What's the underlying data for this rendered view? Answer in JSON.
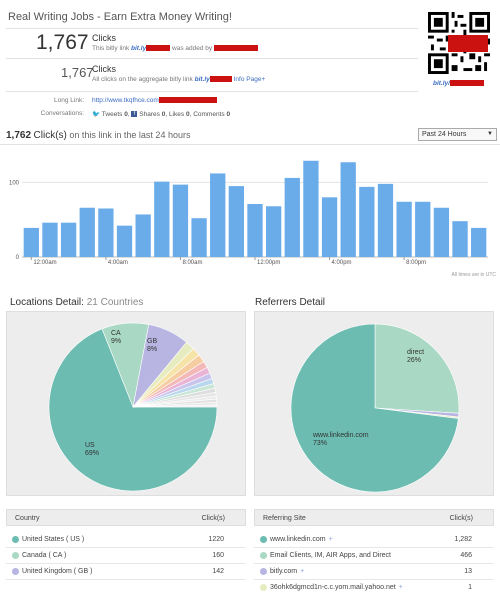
{
  "page": {
    "title": "Real Writing Jobs - Earn Extra Money Writing!"
  },
  "summary": {
    "clicks_count": "1,767",
    "clicks_label": "Clicks",
    "clicks_sub_prefix": "This bitly link",
    "bitly_word": "bit.ly",
    "clicks_sub_mid": "was added by",
    "agg_count": "1,767",
    "agg_label": "Clicks",
    "agg_sub_prefix": "All clicks on the aggregate bitly link",
    "agg_sub_suffix": "Info Page+",
    "long_link_label": "Long Link:",
    "long_link_value": "http://www.tkqfhce.com",
    "conversations_label": "Conversations:",
    "conv_tweets": "Tweets",
    "conv_tweets_n": "0",
    "conv_shares": "Shares",
    "conv_shares_n": "0",
    "conv_likes": "Likes",
    "conv_likes_n": "0",
    "conv_comments": "Comments",
    "conv_comments_n": "0",
    "qr_caption": "bit.ly/"
  },
  "clicks_chart": {
    "count": "1,762",
    "label": "Click(s)",
    "suffix": "on this link in the last 24 hours",
    "range_selected": "Past 24 Hours",
    "footnote": "All times are in UTC"
  },
  "locations": {
    "title": "Locations Detail:",
    "count_text": "21 Countries",
    "table_header_country": "Country",
    "table_header_clicks": "Click(s)",
    "rows": [
      {
        "name": "United States ( US )",
        "clicks": "1220",
        "color": "#6cbcb2"
      },
      {
        "name": "Canada ( CA )",
        "clicks": "160",
        "color": "#a9d9c5"
      },
      {
        "name": "United Kingdom ( GB )",
        "clicks": "142",
        "color": "#b8b5e2"
      }
    ],
    "pie_labels": [
      {
        "code": "US",
        "pct": "69%"
      },
      {
        "code": "CA",
        "pct": "9%"
      },
      {
        "code": "GB",
        "pct": "8%"
      }
    ]
  },
  "referrers": {
    "title": "Referrers Detail",
    "table_header_site": "Referring Site",
    "table_header_clicks": "Click(s)",
    "rows": [
      {
        "name": "www.linkedin.com",
        "clicks": "1,282",
        "color": "#6cbcb2"
      },
      {
        "name": "Email Clients, IM, AIR Apps, and Direct",
        "clicks": "466",
        "color": "#a9d9c5"
      },
      {
        "name": "bitly.com",
        "clicks": "13",
        "color": "#b8b5e2"
      },
      {
        "name": "36ohk6dgmcd1n-c.c.yom.mail.yahoo.net",
        "clicks": "1",
        "color": "#e6ecc0"
      }
    ],
    "pie_labels": [
      {
        "code": "direct",
        "pct": "26%"
      },
      {
        "code": "www.linkedin.com",
        "pct": "73%"
      }
    ]
  },
  "chart_data": [
    {
      "type": "bar",
      "title": "1,762 Click(s) on this link in the last 24 hours",
      "xlabel": "",
      "ylabel": "",
      "ylim": [
        0,
        130
      ],
      "yticks": [
        0,
        100
      ],
      "tick_labels": [
        "12:00am",
        "4:00am",
        "8:00am",
        "12:00pm",
        "4:00pm",
        "8:00pm"
      ],
      "values": [
        39,
        46,
        46,
        66,
        65,
        42,
        57,
        101,
        97,
        52,
        112,
        95,
        71,
        68,
        106,
        129,
        80,
        127,
        94,
        98,
        74,
        74,
        66,
        48,
        39
      ],
      "color": "#6aabea",
      "grid": true
    },
    {
      "type": "pie",
      "title": "Locations Detail",
      "labels": [
        "US",
        "CA",
        "GB",
        "other"
      ],
      "values": [
        69,
        9,
        8,
        14
      ],
      "colors": [
        "#6cbcb2",
        "#a9d9c5",
        "#b8b5e2",
        "#e0e0e0"
      ]
    },
    {
      "type": "pie",
      "title": "Referrers Detail",
      "labels": [
        "www.linkedin.com",
        "direct",
        "bitly.com",
        "other"
      ],
      "values": [
        73,
        26,
        0.7,
        0.3
      ],
      "colors": [
        "#6cbcb2",
        "#a9d9c5",
        "#b8b5e2",
        "#e6ecc0"
      ]
    }
  ]
}
